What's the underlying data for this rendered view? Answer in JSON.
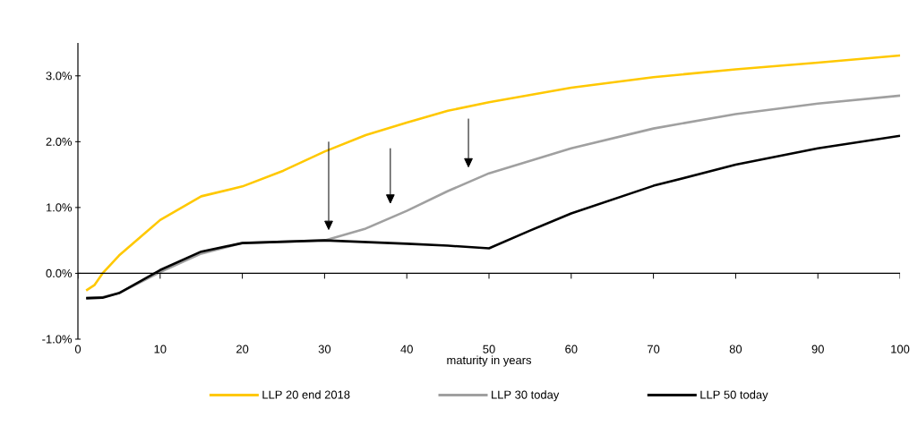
{
  "chart_data": {
    "type": "line",
    "xlabel": "maturity in years",
    "xlim": [
      0,
      100
    ],
    "xticks": [
      0,
      10,
      20,
      30,
      40,
      50,
      60,
      70,
      80,
      90,
      100
    ],
    "ylim": [
      -1,
      3.5
    ],
    "yticks": [
      {
        "value": -1,
        "label": "-1.0%"
      },
      {
        "value": 0,
        "label": "0.0%"
      },
      {
        "value": 1,
        "label": "1.0%"
      },
      {
        "value": 2,
        "label": "2.0%"
      },
      {
        "value": 3,
        "label": "3.0%"
      }
    ],
    "legend": "bottom",
    "marker": "none",
    "line_style": "solid",
    "series": [
      {
        "name": "LLP 20 end 2018",
        "color": "#ffc800",
        "x": [
          1,
          2,
          3,
          5,
          10,
          15,
          20,
          25,
          30,
          35,
          40,
          45,
          50,
          60,
          70,
          80,
          90,
          100
        ],
        "values": [
          -0.26,
          -0.18,
          0,
          0.27,
          0.81,
          1.17,
          1.32,
          1.56,
          1.85,
          2.1,
          2.29,
          2.47,
          2.6,
          2.82,
          2.98,
          3.1,
          3.2,
          3.31
        ]
      },
      {
        "name": "LLP 30 today",
        "color": "#a0a0a0",
        "x": [
          1,
          3,
          5,
          10,
          15,
          20,
          25,
          30,
          35,
          40,
          45,
          50,
          60,
          70,
          80,
          90,
          100
        ],
        "values": [
          -0.37,
          -0.36,
          -0.3,
          0.02,
          0.3,
          0.46,
          0.48,
          0.5,
          0.68,
          0.95,
          1.25,
          1.52,
          1.9,
          2.2,
          2.42,
          2.58,
          2.7
        ]
      },
      {
        "name": "LLP 50 today",
        "color": "#000000",
        "x": [
          1,
          3,
          5,
          10,
          15,
          20,
          25,
          30,
          40,
          45,
          50,
          55,
          60,
          70,
          80,
          90,
          100
        ],
        "values": [
          -0.38,
          -0.37,
          -0.3,
          0.05,
          0.33,
          0.46,
          0.48,
          0.5,
          0.45,
          0.42,
          0.38,
          0.65,
          0.91,
          1.33,
          1.65,
          1.9,
          2.09
        ]
      }
    ]
  }
}
